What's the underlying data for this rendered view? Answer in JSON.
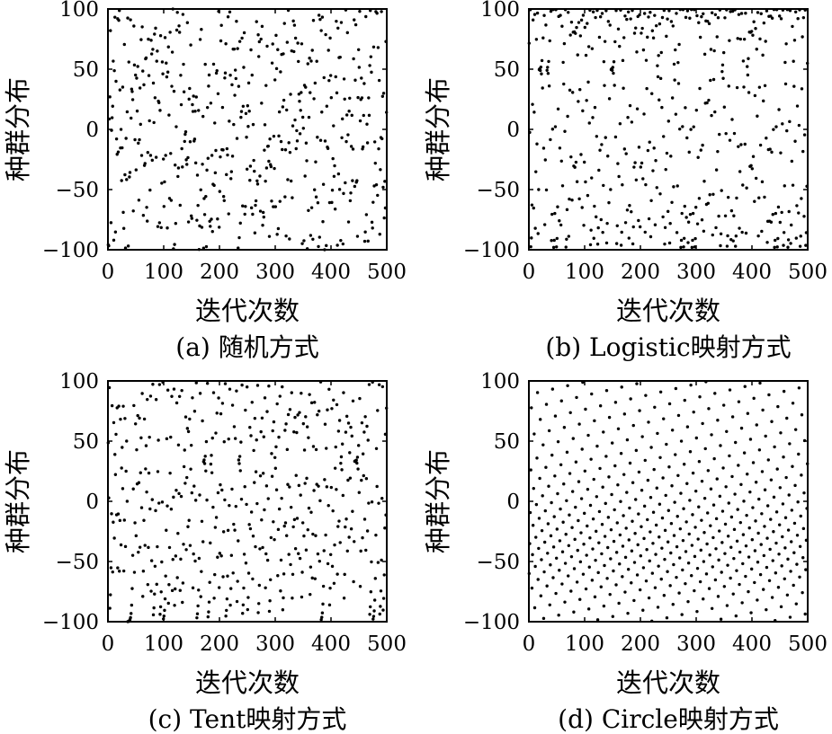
{
  "chart_data": [
    {
      "type": "scatter",
      "caption": "(a) 随机方式",
      "xlabel": "迭代次数",
      "ylabel": "种群分布",
      "xlim": [
        0,
        500
      ],
      "ylim": [
        -100,
        100
      ],
      "xticks": [
        "0",
        "100",
        "200",
        "300",
        "400",
        "500"
      ],
      "yticks": [
        "100",
        "50",
        "0",
        "−50",
        "−100"
      ],
      "grid": false,
      "pattern": "uniform-random",
      "point_count": 500
    },
    {
      "type": "scatter",
      "caption": "(b) Logistic映射方式",
      "xlabel": "迭代次数",
      "ylabel": "种群分布",
      "xlim": [
        0,
        500
      ],
      "ylim": [
        -100,
        100
      ],
      "xticks": [
        "0",
        "100",
        "200",
        "300",
        "400",
        "500"
      ],
      "yticks": [
        "100",
        "50",
        "0",
        "−50",
        "−100"
      ],
      "grid": false,
      "pattern": "logistic-map",
      "point_count": 500
    },
    {
      "type": "scatter",
      "caption": "(c) Tent映射方式",
      "xlabel": "迭代次数",
      "ylabel": "种群分布",
      "xlim": [
        0,
        500
      ],
      "ylim": [
        -100,
        100
      ],
      "xticks": [
        "0",
        "100",
        "200",
        "300",
        "400",
        "500"
      ],
      "yticks": [
        "100",
        "50",
        "0",
        "−50",
        "−100"
      ],
      "grid": false,
      "pattern": "tent-map",
      "point_count": 500
    },
    {
      "type": "scatter",
      "caption": "(d) Circle映射方式",
      "xlabel": "迭代次数",
      "ylabel": "种群分布",
      "xlim": [
        0,
        500
      ],
      "ylim": [
        -100,
        100
      ],
      "xticks": [
        "0",
        "100",
        "200",
        "300",
        "400",
        "500"
      ],
      "yticks": [
        "100",
        "50",
        "0",
        "−50",
        "−100"
      ],
      "grid": false,
      "pattern": "circle-map",
      "point_count": 500
    }
  ]
}
